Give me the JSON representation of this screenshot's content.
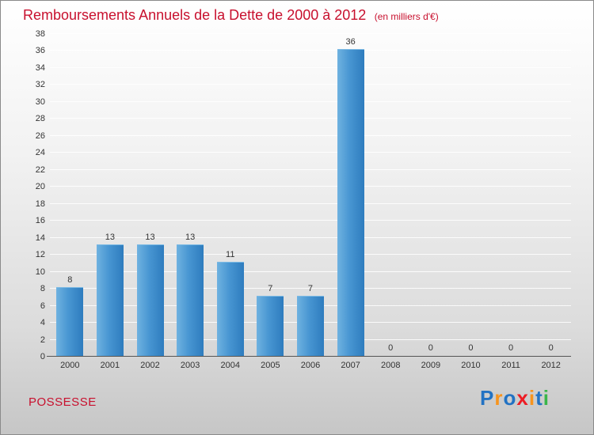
{
  "header": {
    "title": "Remboursements Annuels de la Dette de 2000 à 2012",
    "subtitle": "(en milliers d'€)"
  },
  "chart_data": {
    "type": "bar",
    "title": "Remboursements Annuels de la Dette de 2000 à 2012",
    "subtitle": "(en milliers d'€)",
    "categories": [
      "2000",
      "2001",
      "2002",
      "2003",
      "2004",
      "2005",
      "2006",
      "2007",
      "2008",
      "2009",
      "2010",
      "2011",
      "2012"
    ],
    "values": [
      8,
      13,
      13,
      13,
      11,
      7,
      7,
      36,
      0,
      0,
      0,
      0,
      0
    ],
    "xlabel": "",
    "ylabel": "",
    "ylim": [
      0,
      38
    ],
    "ytick_step": 2,
    "grid": true,
    "legend": "none",
    "bar_color_light": "#6fb2e0",
    "bar_color_dark": "#2e7cbe",
    "value_label_color": "#333333"
  },
  "footer": {
    "location": "POSSESSE",
    "logo_letters": [
      {
        "ch": "P",
        "color": "#2272c3"
      },
      {
        "ch": "r",
        "color": "#f7941d"
      },
      {
        "ch": "o",
        "color": "#2272c3"
      },
      {
        "ch": "x",
        "color": "#ed1c24"
      },
      {
        "ch": "i",
        "color": "#f7941d"
      },
      {
        "ch": "t",
        "color": "#2272c3"
      },
      {
        "ch": "i",
        "color": "#39b54a"
      }
    ]
  },
  "colors": {
    "accent_red": "#c8102e",
    "axis": "#555555",
    "text": "#333333"
  }
}
